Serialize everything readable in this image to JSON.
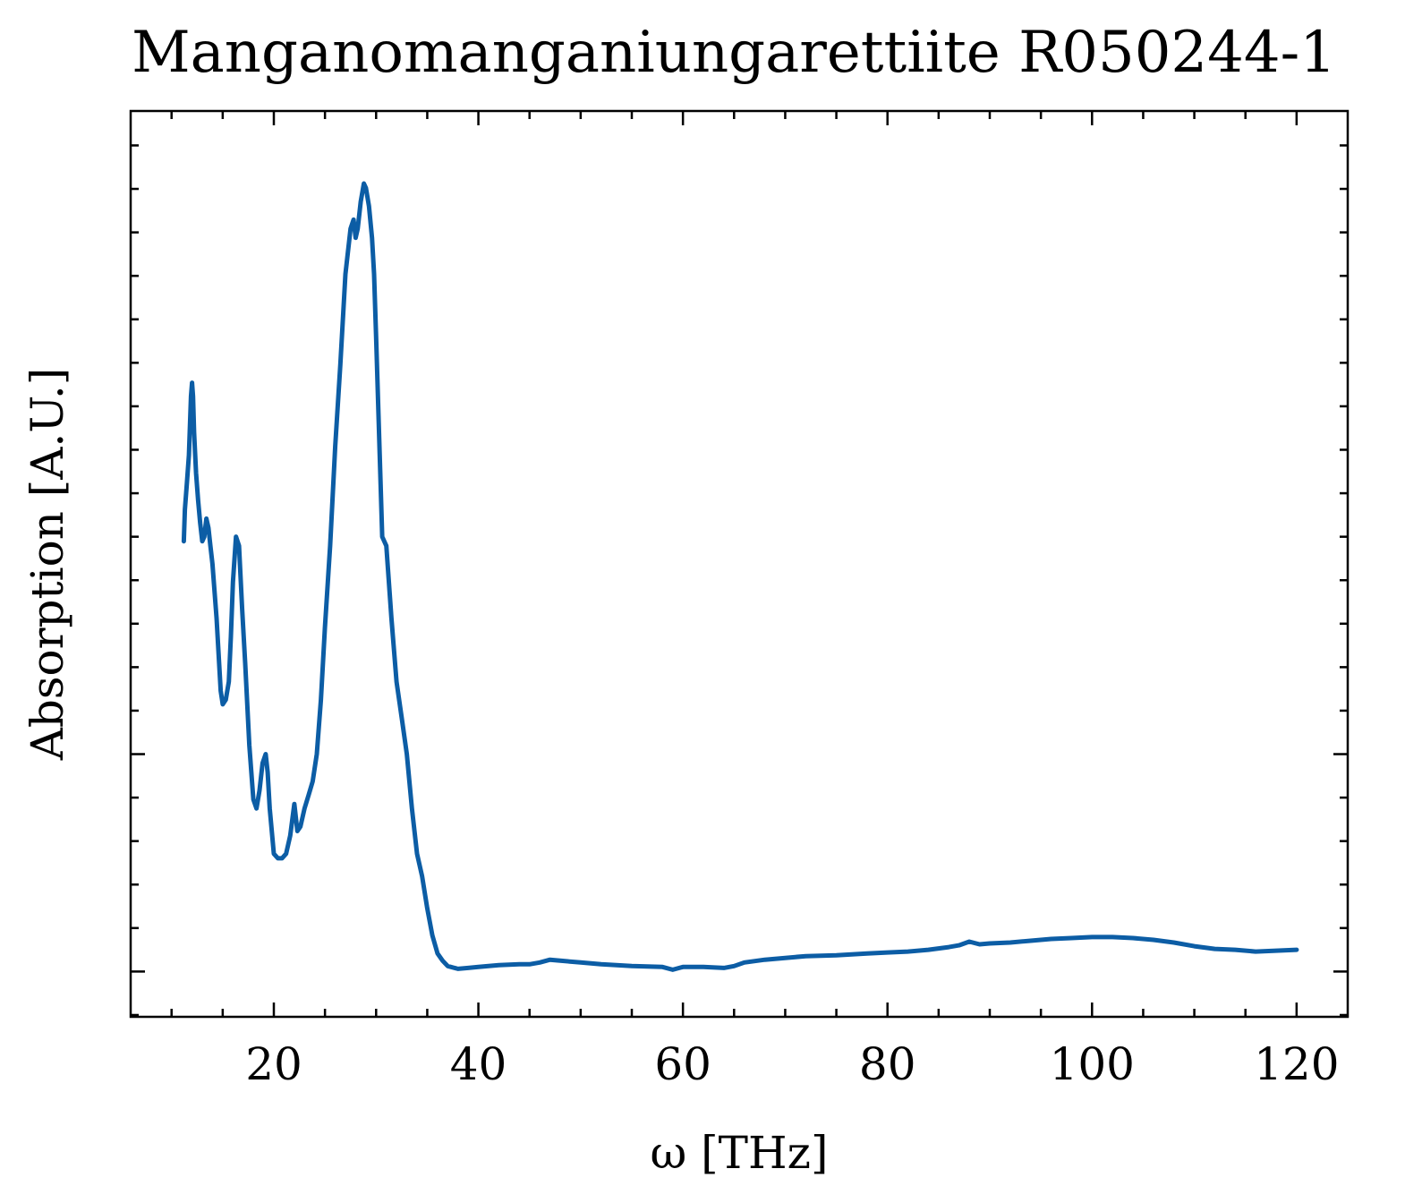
{
  "chart_data": {
    "type": "line",
    "title": "Manganomanganiungarettiite R050244-1",
    "xlabel": "ω [THz]",
    "ylabel": "Absorption [A.U.]",
    "xlim": [
      6,
      125
    ],
    "ylim": [
      0,
      1
    ],
    "x_ticks": [
      20,
      40,
      60,
      80,
      100,
      120
    ],
    "x_tick_labels": [
      "20",
      "40",
      "60",
      "80",
      "100",
      "120"
    ],
    "y_major_ticks": [
      0.05,
      0.29,
      0.525,
      0.762
    ],
    "y_tick_labels_shown": false,
    "grid": false,
    "legend": "none",
    "line_color": "#0C5DA5",
    "series": [
      {
        "x": [
          11.2,
          11.3,
          11.5,
          11.7,
          11.9,
          12.0,
          12.1,
          12.2,
          12.4,
          12.6,
          12.8,
          13.0,
          13.2,
          13.4,
          13.6,
          13.8,
          14.0,
          14.4,
          14.8,
          15.0,
          15.3,
          15.6,
          15.8,
          16.0,
          16.3,
          16.6,
          16.9,
          17.2,
          17.6,
          18.0,
          18.3,
          18.6,
          18.9,
          19.2,
          19.4,
          19.6,
          20.0,
          20.4,
          20.8,
          21.2,
          21.6,
          22.0,
          22.3,
          22.6,
          23.0,
          23.4,
          23.8,
          24.2,
          24.6,
          25.0,
          25.5,
          26.0,
          26.5,
          27.0,
          27.5,
          27.8,
          28.0,
          28.2,
          28.5,
          28.8,
          29.0,
          29.3,
          29.6,
          29.8,
          30.0,
          30.3,
          30.6,
          31.0,
          31.5,
          32.0,
          32.5,
          33.0,
          33.5,
          34.0,
          34.5,
          35.0,
          35.5,
          36.0,
          36.5,
          37.0,
          38.0,
          39.0,
          40.0,
          42.0,
          44.0,
          45.0,
          46.0,
          47.0,
          48.0,
          50.0,
          52.0,
          55.0,
          58.0,
          59.0,
          60.0,
          62.0,
          64.0,
          65.0,
          66.0,
          68.0,
          70.0,
          71.0,
          72.0,
          75.0,
          78.0,
          80.0,
          82.0,
          84.0,
          86.0,
          87.0,
          88.0,
          89.0,
          90.0,
          92.0,
          94.0,
          96.0,
          98.0,
          100.0,
          102.0,
          104.0,
          106.0,
          108.0,
          110.0,
          112.0,
          114.0,
          116.0,
          118.0,
          120.0
        ],
        "y": [
          0.525,
          0.56,
          0.59,
          0.62,
          0.685,
          0.7,
          0.685,
          0.645,
          0.6,
          0.57,
          0.545,
          0.525,
          0.53,
          0.55,
          0.54,
          0.52,
          0.5,
          0.44,
          0.36,
          0.345,
          0.35,
          0.37,
          0.42,
          0.48,
          0.53,
          0.52,
          0.45,
          0.39,
          0.3,
          0.24,
          0.23,
          0.25,
          0.28,
          0.29,
          0.27,
          0.23,
          0.18,
          0.175,
          0.175,
          0.18,
          0.2,
          0.235,
          0.205,
          0.21,
          0.23,
          0.245,
          0.26,
          0.29,
          0.35,
          0.43,
          0.52,
          0.63,
          0.72,
          0.82,
          0.87,
          0.88,
          0.86,
          0.87,
          0.9,
          0.92,
          0.915,
          0.895,
          0.86,
          0.82,
          0.75,
          0.64,
          0.53,
          0.52,
          0.44,
          0.37,
          0.33,
          0.29,
          0.23,
          0.18,
          0.155,
          0.12,
          0.09,
          0.07,
          0.062,
          0.056,
          0.053,
          0.054,
          0.055,
          0.057,
          0.058,
          0.058,
          0.06,
          0.063,
          0.062,
          0.06,
          0.058,
          0.056,
          0.055,
          0.052,
          0.055,
          0.055,
          0.054,
          0.056,
          0.06,
          0.063,
          0.065,
          0.066,
          0.067,
          0.068,
          0.07,
          0.071,
          0.072,
          0.074,
          0.077,
          0.079,
          0.083,
          0.08,
          0.081,
          0.082,
          0.084,
          0.086,
          0.087,
          0.088,
          0.088,
          0.087,
          0.085,
          0.082,
          0.078,
          0.075,
          0.074,
          0.072,
          0.073,
          0.074
        ]
      }
    ]
  }
}
